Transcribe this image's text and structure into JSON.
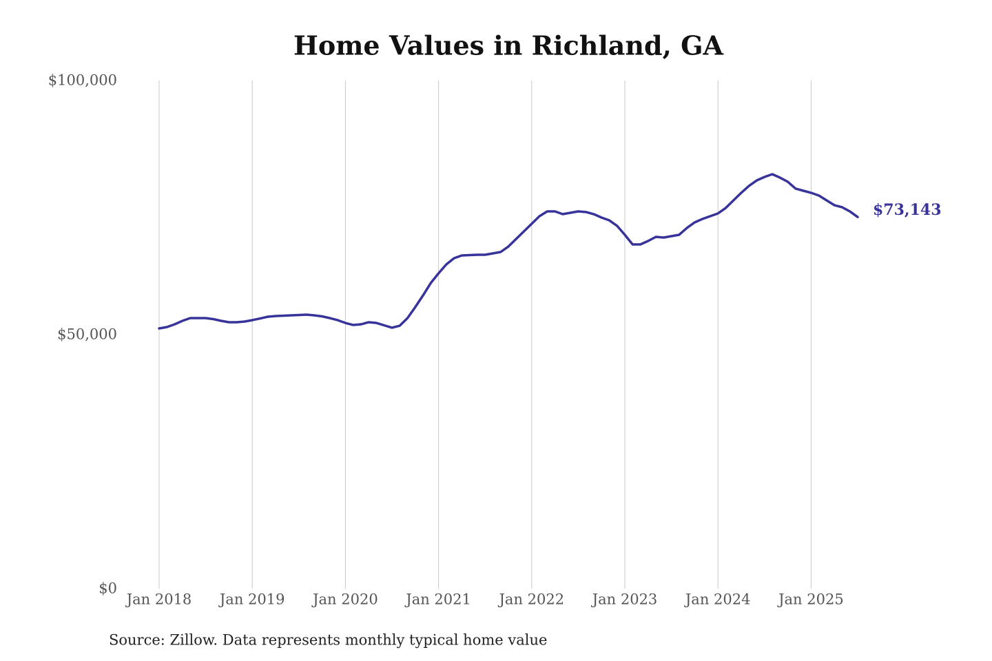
{
  "chart_data": {
    "type": "line",
    "title": "Home Values in Richland, GA",
    "note": "Source: Zillow. Data represents monthly typical home value",
    "x": [
      "2018-01",
      "2018-02",
      "2018-03",
      "2018-04",
      "2018-05",
      "2018-06",
      "2018-07",
      "2018-08",
      "2018-09",
      "2018-10",
      "2018-11",
      "2018-12",
      "2019-01",
      "2019-02",
      "2019-03",
      "2019-04",
      "2019-05",
      "2019-06",
      "2019-07",
      "2019-08",
      "2019-09",
      "2019-10",
      "2019-11",
      "2019-12",
      "2020-01",
      "2020-02",
      "2020-03",
      "2020-04",
      "2020-05",
      "2020-06",
      "2020-07",
      "2020-08",
      "2020-09",
      "2020-10",
      "2020-11",
      "2020-12",
      "2021-01",
      "2021-02",
      "2021-03",
      "2021-04",
      "2021-05",
      "2021-06",
      "2021-07",
      "2021-08",
      "2021-09",
      "2021-10",
      "2021-11",
      "2021-12",
      "2022-01",
      "2022-02",
      "2022-03",
      "2022-04",
      "2022-05",
      "2022-06",
      "2022-07",
      "2022-08",
      "2022-09",
      "2022-10",
      "2022-11",
      "2022-12",
      "2023-01",
      "2023-02",
      "2023-03",
      "2023-04",
      "2023-05",
      "2023-06",
      "2023-07",
      "2023-08",
      "2023-09",
      "2023-10",
      "2023-11",
      "2023-12",
      "2024-01",
      "2024-02",
      "2024-03",
      "2024-04",
      "2024-05",
      "2024-06",
      "2024-07",
      "2024-08",
      "2024-09",
      "2024-10",
      "2024-11",
      "2024-12",
      "2025-01",
      "2025-02",
      "2025-03",
      "2025-04",
      "2025-05",
      "2025-06",
      "2025-07"
    ],
    "values": [
      51220,
      51490,
      52030,
      52710,
      53250,
      53250,
      53250,
      53050,
      52710,
      52440,
      52440,
      52570,
      52850,
      53180,
      53520,
      53660,
      53730,
      53790,
      53860,
      53930,
      53790,
      53590,
      53250,
      52850,
      52300,
      51900,
      52030,
      52440,
      52300,
      51830,
      51360,
      51760,
      53250,
      55420,
      57720,
      60160,
      62060,
      63820,
      65040,
      65580,
      65650,
      65720,
      65720,
      65990,
      66260,
      67340,
      68830,
      70330,
      71820,
      73310,
      74250,
      74250,
      73710,
      73980,
      74250,
      74120,
      73710,
      73040,
      72490,
      71410,
      69650,
      67750,
      67750,
      68430,
      69240,
      69110,
      69380,
      69650,
      71000,
      72090,
      72760,
      73310,
      73850,
      74930,
      76420,
      77910,
      79270,
      80350,
      81030,
      81570,
      80890,
      80080,
      78730,
      78320,
      77910,
      77370,
      76420,
      75470,
      75070,
      74250,
      73143
    ],
    "value_labels": [
      null,
      null,
      null,
      null,
      null,
      null,
      null,
      null,
      null,
      null,
      null,
      null,
      null,
      null,
      null,
      null,
      null,
      null,
      null,
      null,
      null,
      null,
      null,
      null,
      null,
      null,
      null,
      null,
      null,
      null,
      null,
      null,
      null,
      null,
      null,
      null,
      null,
      null,
      null,
      null,
      null,
      null,
      null,
      null,
      null,
      null,
      null,
      null,
      null,
      null,
      null,
      null,
      null,
      null,
      null,
      null,
      null,
      null,
      null,
      null,
      null,
      null,
      null,
      null,
      null,
      null,
      null,
      null,
      null,
      null,
      null,
      null,
      null,
      null,
      null,
      null,
      null,
      null,
      null,
      null,
      null,
      null,
      null,
      null,
      null,
      null,
      null,
      null,
      null,
      null,
      "$73,143"
    ],
    "color": "#37339a",
    "xlim": [
      "2018-01",
      "2025-07"
    ],
    "xticks": [
      {
        "value": "2018-01",
        "label": "Jan 2018"
      },
      {
        "value": "2019-01",
        "label": "Jan 2019"
      },
      {
        "value": "2020-01",
        "label": "Jan 2020"
      },
      {
        "value": "2021-01",
        "label": "Jan 2021"
      },
      {
        "value": "2022-01",
        "label": "Jan 2022"
      },
      {
        "value": "2023-01",
        "label": "Jan 2023"
      },
      {
        "value": "2024-01",
        "label": "Jan 2024"
      },
      {
        "value": "2025-01",
        "label": "Jan 2025"
      }
    ],
    "ylim": [
      0,
      100000
    ],
    "yticks": [
      {
        "value": 0,
        "label": "$0"
      },
      {
        "value": 50000,
        "label": "$50,000"
      },
      {
        "value": 100000,
        "label": "$100,000"
      }
    ],
    "grid": "x"
  }
}
